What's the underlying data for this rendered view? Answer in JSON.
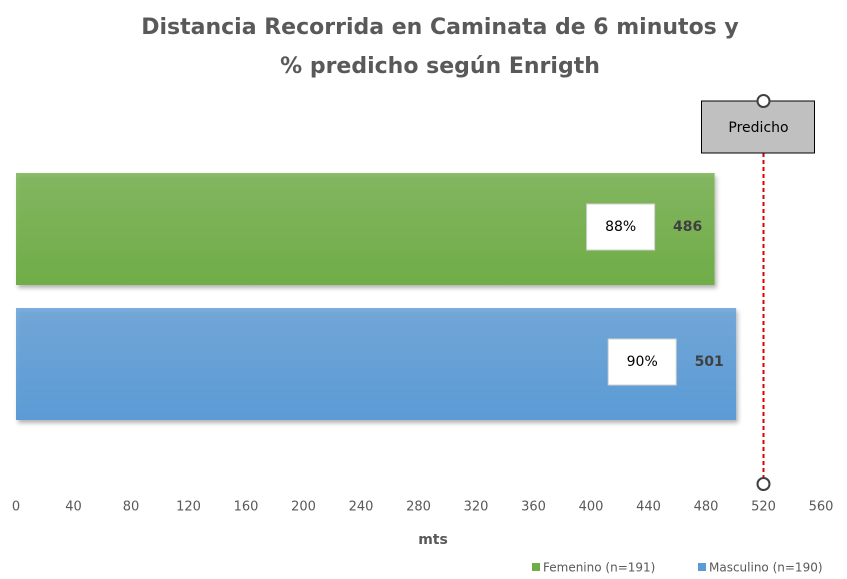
{
  "chart_data": {
    "type": "hbar",
    "title": [
      "Distancia Recorrida en Caminata de 6 minutos y",
      "% predicho según Enrigth"
    ],
    "xlabel": "mts",
    "xlim": [
      0,
      560
    ],
    "xticks": [
      0,
      40,
      80,
      120,
      160,
      200,
      240,
      280,
      320,
      360,
      400,
      440,
      480,
      520,
      560
    ],
    "series": [
      {
        "name": "Femenino (n=191)",
        "color": "#70ad47",
        "values": [
          486
        ],
        "percent_label": "88%"
      },
      {
        "name": "Masculino (n=190)",
        "color": "#5b9bd5",
        "values": [
          501
        ],
        "percent_label": "90%"
      }
    ],
    "reference_line": {
      "label": "Predicho",
      "value": 520,
      "color": "#e00000"
    },
    "legend": "bottom-right"
  }
}
